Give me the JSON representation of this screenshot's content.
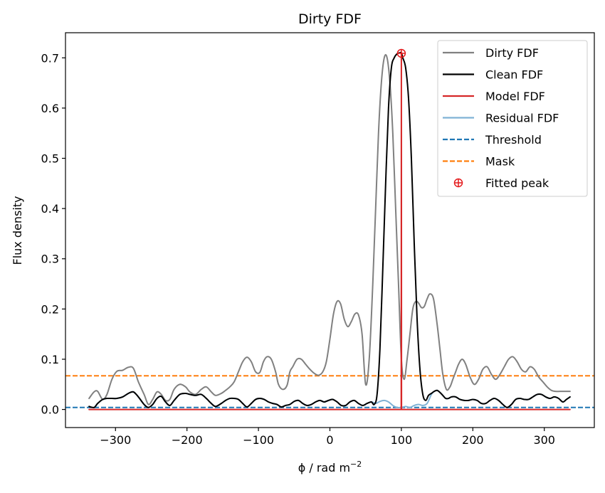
{
  "chart_data": {
    "type": "line",
    "title": "Dirty FDF",
    "xlabel": "ϕ / rad m",
    "xlabel_exponent": "−2",
    "ylabel": "Flux density",
    "xlim": [
      -370,
      370
    ],
    "ylim": [
      -0.036,
      0.75
    ],
    "xticks": [
      -300,
      -200,
      -100,
      0,
      100,
      200,
      300
    ],
    "xtick_labels": [
      "−300",
      "−200",
      "−100",
      "0",
      "100",
      "200",
      "300"
    ],
    "yticks": [
      0.0,
      0.1,
      0.2,
      0.3,
      0.4,
      0.5,
      0.6,
      0.7
    ],
    "ytick_labels": [
      "0.0",
      "0.1",
      "0.2",
      "0.3",
      "0.4",
      "0.5",
      "0.6",
      "0.7"
    ],
    "grid": false,
    "legend_position": "top-right",
    "series": [
      {
        "name": "Dirty FDF",
        "color": "#808080",
        "style": "solid",
        "x": [
          -337,
          -330,
          -325,
          -318,
          -312,
          -305,
          -298,
          -290,
          -282,
          -275,
          -268,
          -260,
          -254,
          -248,
          -242,
          -236,
          -230,
          -224,
          -218,
          -210,
          -202,
          -196,
          -188,
          -180,
          -173,
          -166,
          -160,
          -152,
          -146,
          -140,
          -134,
          -128,
          -122,
          -116,
          -110,
          -104,
          -98,
          -93,
          -88,
          -82,
          -76,
          -72,
          -66,
          -60,
          -56,
          -52,
          -46,
          -40,
          -34,
          -28,
          -22,
          -16,
          -10,
          -5,
          0,
          5,
          10,
          15,
          20,
          25,
          30,
          35,
          40,
          45,
          50,
          55,
          60,
          64,
          68,
          72,
          76,
          80,
          84,
          88,
          92,
          96,
          100,
          104,
          108,
          112,
          116,
          120,
          124,
          128,
          132,
          136,
          140,
          145,
          150,
          154,
          158,
          163,
          168,
          172,
          176,
          180,
          185,
          190,
          196,
          202,
          208,
          214,
          220,
          226,
          232,
          238,
          244,
          250,
          256,
          262,
          268,
          274,
          280,
          286,
          292,
          298,
          304,
          310,
          316,
          322,
          330,
          336
        ],
        "y": [
          0.022,
          0.035,
          0.036,
          0.02,
          0.03,
          0.06,
          0.076,
          0.078,
          0.084,
          0.082,
          0.055,
          0.03,
          0.01,
          0.02,
          0.035,
          0.03,
          0.018,
          0.02,
          0.04,
          0.05,
          0.045,
          0.035,
          0.03,
          0.04,
          0.045,
          0.035,
          0.028,
          0.032,
          0.038,
          0.045,
          0.055,
          0.075,
          0.095,
          0.104,
          0.095,
          0.075,
          0.074,
          0.095,
          0.105,
          0.1,
          0.075,
          0.05,
          0.04,
          0.048,
          0.075,
          0.085,
          0.1,
          0.1,
          0.09,
          0.08,
          0.072,
          0.068,
          0.075,
          0.095,
          0.14,
          0.19,
          0.215,
          0.21,
          0.18,
          0.165,
          0.175,
          0.19,
          0.188,
          0.15,
          0.05,
          0.1,
          0.25,
          0.4,
          0.55,
          0.65,
          0.7,
          0.7,
          0.65,
          0.55,
          0.4,
          0.25,
          0.1,
          0.06,
          0.1,
          0.15,
          0.2,
          0.215,
          0.212,
          0.203,
          0.205,
          0.22,
          0.23,
          0.22,
          0.17,
          0.12,
          0.07,
          0.04,
          0.045,
          0.06,
          0.075,
          0.09,
          0.1,
          0.09,
          0.065,
          0.05,
          0.06,
          0.08,
          0.085,
          0.07,
          0.06,
          0.07,
          0.085,
          0.1,
          0.105,
          0.095,
          0.08,
          0.075,
          0.085,
          0.08,
          0.065,
          0.055,
          0.045,
          0.038,
          0.036,
          0.036,
          0.036,
          0.036
        ]
      },
      {
        "name": "Clean FDF",
        "color": "#000000",
        "style": "solid",
        "x": [
          -337,
          -330,
          -325,
          -318,
          -312,
          -305,
          -298,
          -290,
          -282,
          -275,
          -268,
          -260,
          -254,
          -248,
          -242,
          -236,
          -230,
          -224,
          -218,
          -210,
          -202,
          -196,
          -188,
          -180,
          -173,
          -166,
          -160,
          -152,
          -146,
          -140,
          -134,
          -128,
          -122,
          -116,
          -110,
          -104,
          -98,
          -92,
          -86,
          -80,
          -74,
          -68,
          -62,
          -56,
          -50,
          -44,
          -38,
          -32,
          -26,
          -20,
          -14,
          -8,
          -2,
          4,
          10,
          16,
          22,
          28,
          34,
          40,
          46,
          52,
          58,
          62,
          66,
          70,
          74,
          78,
          82,
          86,
          90,
          94,
          98,
          100,
          102,
          106,
          110,
          114,
          118,
          122,
          126,
          130,
          134,
          138,
          142,
          146,
          150,
          154,
          158,
          162,
          166,
          170,
          176,
          182,
          188,
          194,
          200,
          206,
          212,
          218,
          224,
          230,
          236,
          242,
          248,
          254,
          260,
          266,
          272,
          278,
          284,
          290,
          296,
          302,
          308,
          314,
          320,
          326,
          331,
          336
        ],
        "y": [
          0.006,
          0.004,
          0.012,
          0.02,
          0.022,
          0.022,
          0.022,
          0.025,
          0.032,
          0.035,
          0.025,
          0.01,
          0.004,
          0.01,
          0.022,
          0.026,
          0.015,
          0.008,
          0.018,
          0.03,
          0.032,
          0.03,
          0.028,
          0.03,
          0.022,
          0.012,
          0.006,
          0.012,
          0.018,
          0.022,
          0.022,
          0.02,
          0.012,
          0.005,
          0.012,
          0.02,
          0.022,
          0.02,
          0.015,
          0.012,
          0.01,
          0.005,
          0.008,
          0.01,
          0.016,
          0.018,
          0.012,
          0.008,
          0.01,
          0.015,
          0.018,
          0.015,
          0.018,
          0.02,
          0.015,
          0.008,
          0.008,
          0.015,
          0.018,
          0.012,
          0.008,
          0.012,
          0.015,
          0.01,
          0.03,
          0.12,
          0.28,
          0.45,
          0.6,
          0.68,
          0.7,
          0.708,
          0.71,
          0.71,
          0.7,
          0.68,
          0.62,
          0.5,
          0.33,
          0.18,
          0.08,
          0.03,
          0.018,
          0.028,
          0.032,
          0.036,
          0.038,
          0.034,
          0.028,
          0.022,
          0.022,
          0.025,
          0.025,
          0.02,
          0.018,
          0.018,
          0.02,
          0.018,
          0.012,
          0.012,
          0.018,
          0.022,
          0.018,
          0.01,
          0.004,
          0.01,
          0.02,
          0.022,
          0.02,
          0.02,
          0.025,
          0.03,
          0.03,
          0.025,
          0.022,
          0.025,
          0.022,
          0.015,
          0.02,
          0.025
        ]
      },
      {
        "name": "Model FDF",
        "color": "#d62728",
        "style": "solid",
        "x": [
          -337,
          99.6,
          99.8,
          100.0,
          100.2,
          100.4,
          336
        ],
        "y": [
          0.0,
          0.0,
          0.0,
          0.71,
          0.0,
          0.0,
          0.0
        ]
      },
      {
        "name": "Residual FDF",
        "color": "#7fb2d5",
        "style": "solid",
        "x": [
          -337,
          -330,
          -325,
          -318,
          -312,
          -305,
          -298,
          -290,
          -282,
          -275,
          -268,
          -260,
          -254,
          -248,
          -242,
          -236,
          -230,
          -224,
          -218,
          -210,
          -202,
          -196,
          -188,
          -180,
          -173,
          -166,
          -160,
          -152,
          -146,
          -140,
          -134,
          -128,
          -122,
          -116,
          -110,
          -104,
          -98,
          -92,
          -86,
          -80,
          -74,
          -68,
          -62,
          -56,
          -50,
          -44,
          -38,
          -32,
          -26,
          -20,
          -14,
          -8,
          -2,
          4,
          10,
          16,
          22,
          28,
          34,
          40,
          46,
          52,
          58,
          64,
          70,
          76,
          82,
          88,
          94,
          100,
          106,
          112,
          118,
          124,
          130,
          136,
          142,
          146,
          150,
          154,
          158,
          162,
          166,
          170,
          176,
          182,
          188,
          194,
          200,
          206,
          212,
          218,
          224,
          230,
          236,
          242,
          248,
          254,
          260,
          266,
          272,
          278,
          284,
          290,
          296,
          302,
          308,
          314,
          320,
          326,
          331,
          336
        ],
        "y": [
          0.006,
          0.004,
          0.012,
          0.02,
          0.022,
          0.022,
          0.022,
          0.025,
          0.032,
          0.035,
          0.025,
          0.01,
          0.004,
          0.01,
          0.022,
          0.026,
          0.015,
          0.008,
          0.018,
          0.03,
          0.032,
          0.03,
          0.028,
          0.03,
          0.022,
          0.012,
          0.006,
          0.012,
          0.018,
          0.022,
          0.022,
          0.02,
          0.012,
          0.005,
          0.012,
          0.02,
          0.022,
          0.02,
          0.015,
          0.012,
          0.01,
          0.005,
          0.008,
          0.01,
          0.016,
          0.018,
          0.012,
          0.008,
          0.01,
          0.015,
          0.018,
          0.015,
          0.018,
          0.02,
          0.015,
          0.008,
          0.008,
          0.015,
          0.018,
          0.012,
          0.008,
          0.012,
          0.015,
          0.012,
          0.016,
          0.018,
          0.015,
          0.008,
          0.004,
          0.004,
          0.006,
          0.004,
          0.008,
          0.01,
          0.008,
          0.012,
          0.03,
          0.036,
          0.038,
          0.034,
          0.028,
          0.022,
          0.022,
          0.025,
          0.025,
          0.02,
          0.018,
          0.018,
          0.02,
          0.018,
          0.012,
          0.012,
          0.018,
          0.022,
          0.018,
          0.01,
          0.004,
          0.01,
          0.02,
          0.022,
          0.02,
          0.02,
          0.025,
          0.03,
          0.03,
          0.025,
          0.022,
          0.025,
          0.022,
          0.015,
          0.02,
          0.025
        ]
      },
      {
        "name": "Threshold",
        "color": "#1f77b4",
        "style": "dashed",
        "y": 0.004
      },
      {
        "name": "Mask",
        "color": "#ff7f0e",
        "style": "dashed",
        "y": 0.067
      },
      {
        "name": "Fitted peak",
        "color": "#e41a1c",
        "style": "marker",
        "x": [
          100
        ],
        "y": [
          0.709
        ]
      }
    ]
  }
}
